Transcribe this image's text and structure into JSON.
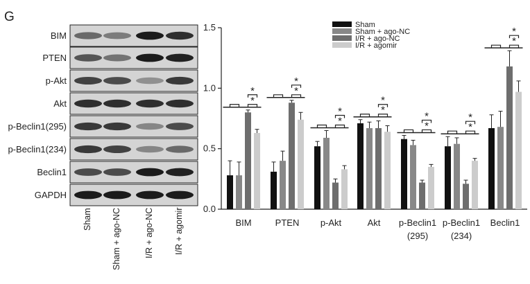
{
  "panel_letter": "G",
  "blot": {
    "rows": [
      "BIM",
      "PTEN",
      "p-Akt",
      "Akt",
      "p-Beclin1(295)",
      "p-Beclin1(234)",
      "Beclin1",
      "GAPDH"
    ],
    "lanes": [
      "Sham",
      "Sham + ago-NC",
      "I/R + ago-NC",
      "I/R + agomir"
    ]
  },
  "chart_data": {
    "type": "bar",
    "categories": [
      "BIM",
      "PTEN",
      "p-Akt",
      "Akt",
      "p-Beclin1\n(295)",
      "p-Beclin1\n(234)",
      "Beclin1"
    ],
    "ylim": [
      0,
      1.5
    ],
    "yticks": [
      "0.0",
      "0.5",
      "1.0",
      "1.5"
    ],
    "series": [
      {
        "name": "Sham",
        "color": "#111111",
        "values": [
          0.28,
          0.31,
          0.52,
          0.71,
          0.58,
          0.52,
          0.67
        ],
        "errors": [
          0.12,
          0.08,
          0.04,
          0.03,
          0.03,
          0.08,
          0.11
        ]
      },
      {
        "name": "Sham + ago-NC",
        "color": "#888888",
        "values": [
          0.28,
          0.4,
          0.59,
          0.67,
          0.53,
          0.54,
          0.68
        ],
        "errors": [
          0.11,
          0.08,
          0.06,
          0.05,
          0.04,
          0.05,
          0.13
        ]
      },
      {
        "name": "I/R + ago-NC",
        "color": "#6e6e6e",
        "values": [
          0.8,
          0.88,
          0.22,
          0.67,
          0.22,
          0.21,
          1.18
        ],
        "errors": [
          0.02,
          0.02,
          0.03,
          0.06,
          0.02,
          0.03,
          0.13
        ]
      },
      {
        "name": "I/R + agomir",
        "color": "#cccccc",
        "values": [
          0.63,
          0.74,
          0.33,
          0.64,
          0.35,
          0.4,
          0.97
        ],
        "errors": [
          0.03,
          0.06,
          0.03,
          0.05,
          0.02,
          0.02,
          0.09
        ]
      }
    ],
    "significance_mark": "*"
  }
}
